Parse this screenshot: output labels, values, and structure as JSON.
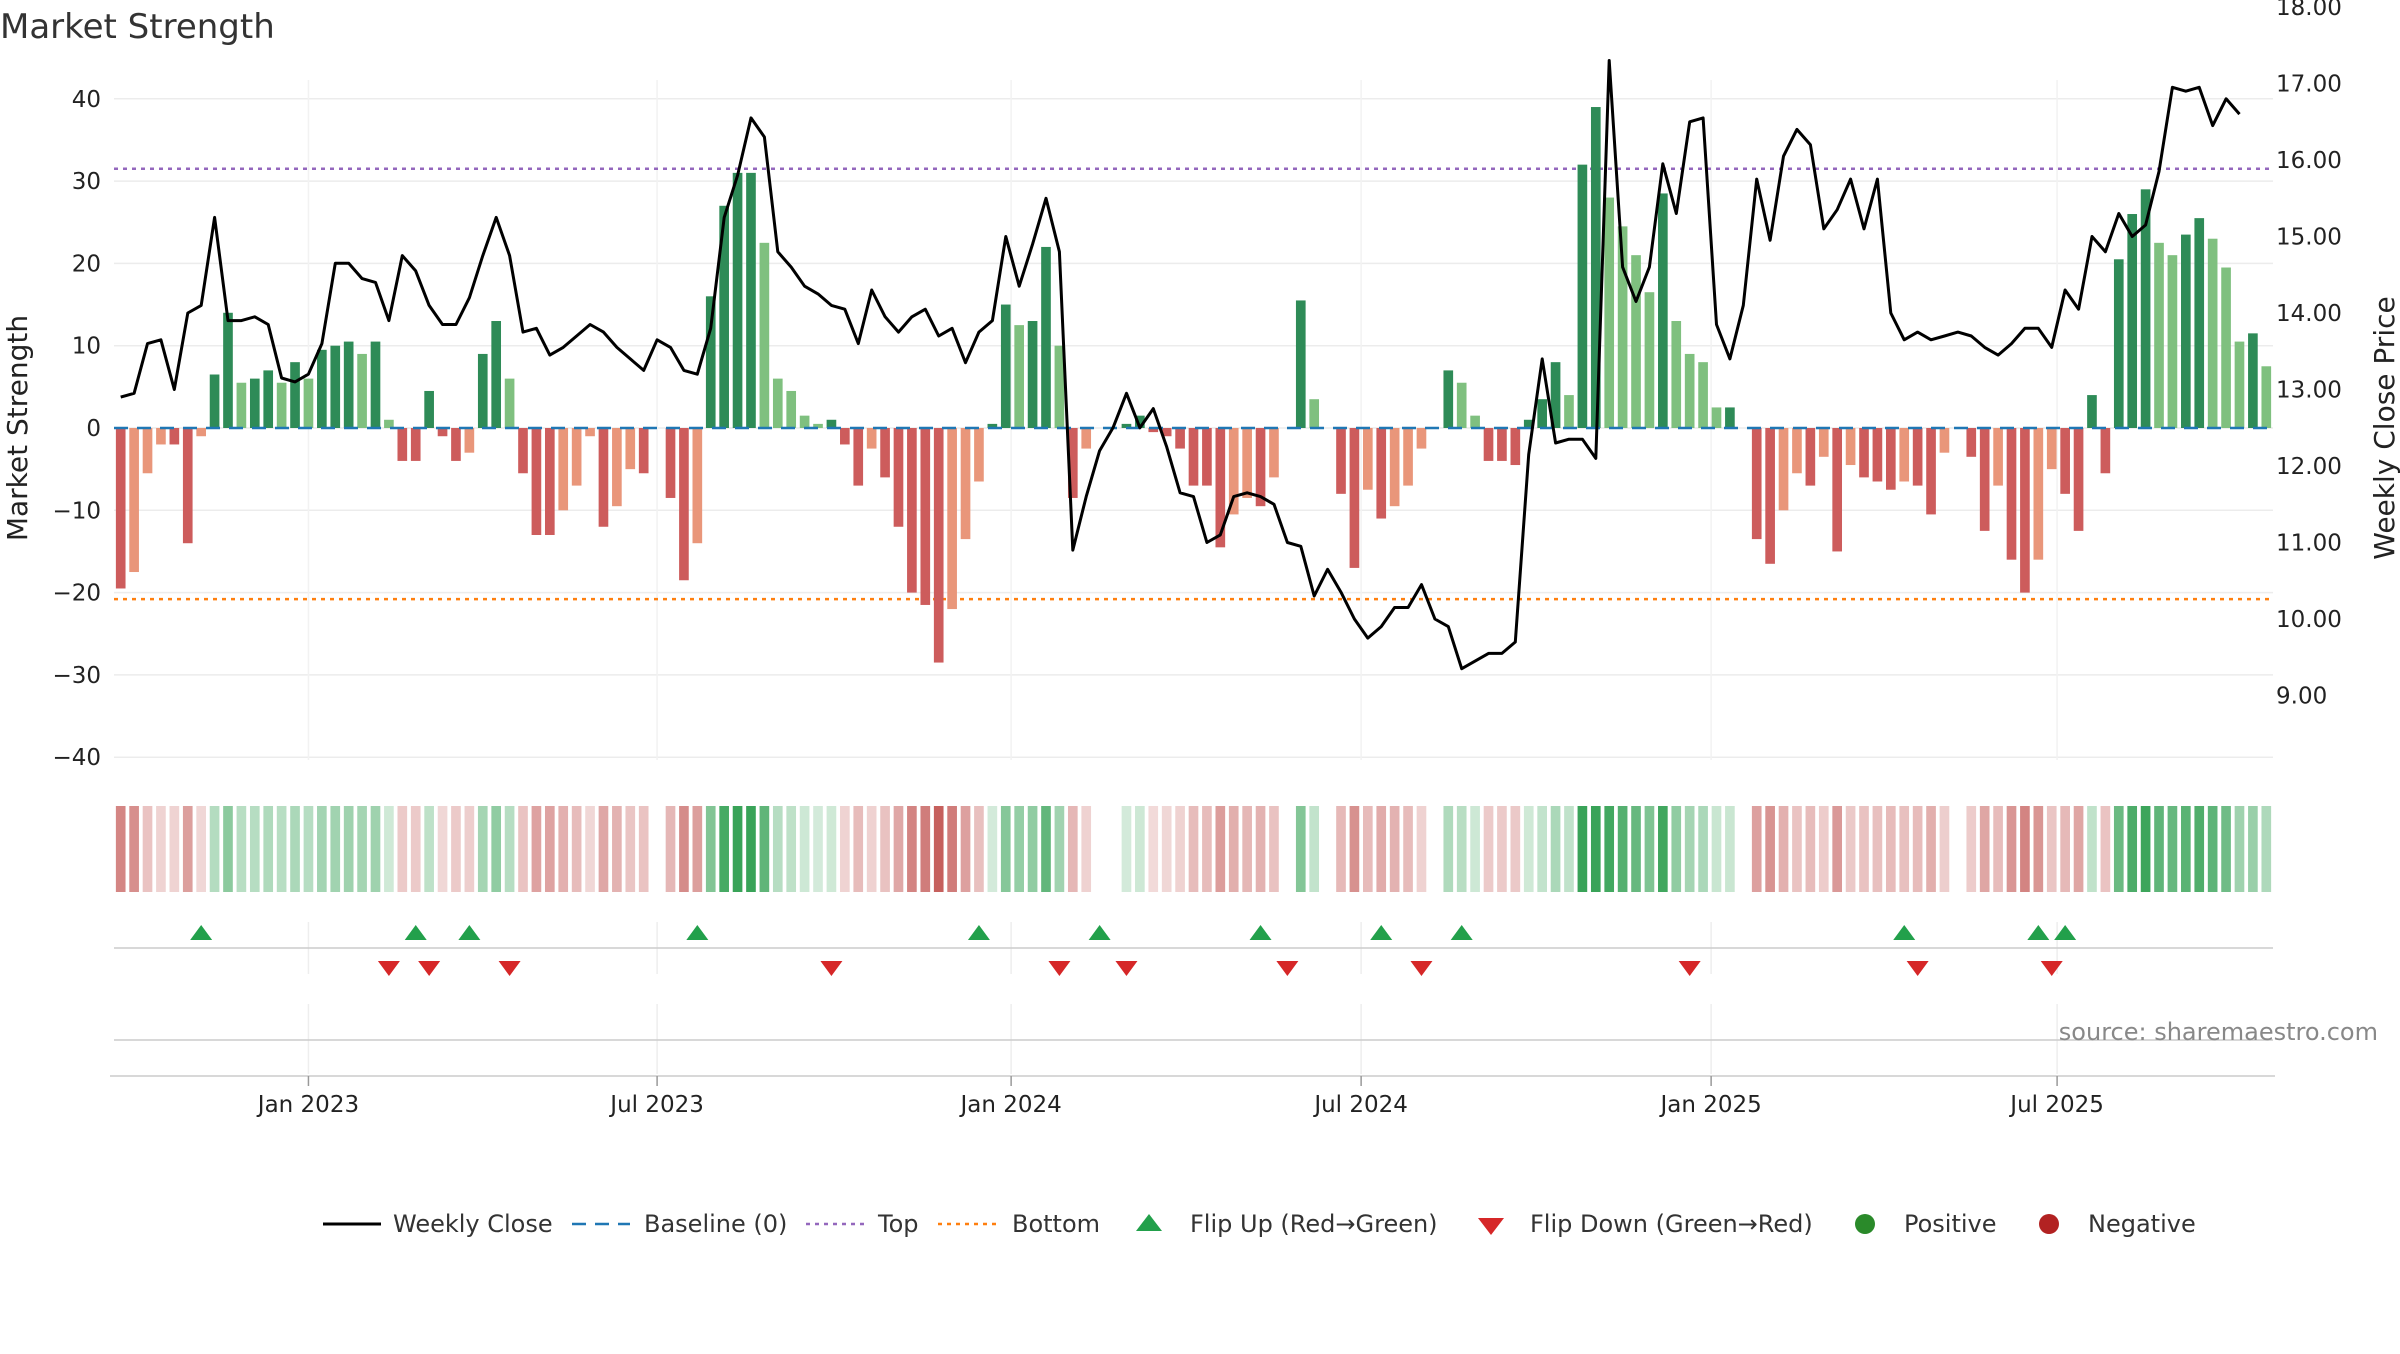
{
  "title": "Market Strength",
  "source": "source: sharemaestro.com",
  "colors": {
    "strong_pos": "#2e8b57",
    "weak_pos": "#7fc07f",
    "strong_neg": "#cd5c5c",
    "weak_neg": "#e9967a",
    "close_line": "#000000",
    "baseline": "#1f77b4",
    "top": "#9467bd",
    "bottom": "#ff7f0e",
    "flip_up": "#22a04b",
    "flip_down": "#d62728",
    "positive": "#2a8a2a",
    "negative": "#b22222"
  },
  "chart_data": {
    "type": "bar",
    "y_left": {
      "label": "Market Strength",
      "ylim": [
        -45,
        42
      ],
      "ticks": [
        40,
        30,
        20,
        10,
        0,
        -10,
        -20,
        -30,
        -40
      ],
      "tick_labels": [
        "40",
        "30",
        "20",
        "10",
        "0",
        "−10",
        "−20",
        "−30",
        "−40"
      ]
    },
    "y_right": {
      "label": "Weekly Close Price",
      "ylim": [
        8.8,
        18.2
      ],
      "ticks": [
        18,
        17,
        16,
        15,
        14,
        13,
        12,
        11,
        10,
        9
      ],
      "tick_labels": [
        "18.00",
        "17.00",
        "16.00",
        "15.00",
        "14.00",
        "13.00",
        "12.00",
        "11.00",
        "10.00",
        "9.00"
      ]
    },
    "x_axis": {
      "tick_labels": [
        "Jan 2023",
        "Jul 2023",
        "Jan 2024",
        "Jul 2024",
        "Jan 2025",
        "Jul 2025"
      ],
      "tick_weeks": [
        14,
        40,
        66.4,
        92.5,
        118.6,
        144.4
      ]
    },
    "levels": {
      "top": 31.5,
      "bottom": -20.8,
      "baseline": 0
    },
    "strength": [
      -19.5,
      -17.5,
      -5.5,
      -2,
      -2,
      -14,
      -1,
      6.5,
      14,
      5.5,
      6,
      7,
      5.5,
      8,
      6,
      9.5,
      10,
      10.5,
      9,
      10.5,
      1,
      -4,
      -4,
      4.5,
      -1,
      -4,
      -3,
      9,
      13,
      6,
      -5.5,
      -13,
      -13,
      -10,
      -7,
      -1,
      -12,
      -9.5,
      -5,
      -5.5,
      0,
      -8.5,
      -18.5,
      -14,
      16,
      27,
      31,
      31,
      22.5,
      6,
      4.5,
      1.5,
      0.5,
      1,
      -2,
      -7,
      -2.5,
      -6,
      -12,
      -20,
      -21.5,
      -28.5,
      -22,
      -13.5,
      -6.5,
      0.5,
      15,
      12.5,
      13,
      22,
      10,
      -8.5,
      -2.5,
      0,
      0,
      0.5,
      1.5,
      -0.5,
      -1,
      -2.5,
      -7,
      -7,
      -14.5,
      -10.5,
      -8.5,
      -9.5,
      -6,
      0,
      15.5,
      3.5,
      0,
      -8,
      -17,
      -7.5,
      -11,
      -9.5,
      -7,
      -2.5,
      0,
      7,
      5.5,
      1.5,
      -4,
      -4,
      -4.5,
      1,
      3.5,
      8,
      4,
      32,
      39,
      28,
      24.5,
      21,
      16.5,
      28.5,
      13,
      9,
      8,
      2.5,
      2.5,
      0,
      -13.5,
      -16.5,
      -10,
      -5.5,
      -7,
      -3.5,
      -15,
      -4.5,
      -6,
      -6.5,
      -7.5,
      -6.5,
      -7,
      -10.5,
      -3,
      0,
      -3.5,
      -12.5,
      -7,
      -16,
      -20,
      -16,
      -5,
      -8,
      -12.5,
      4,
      -5.5,
      20.5,
      26,
      29,
      22.5,
      21,
      23.5,
      25.5,
      23,
      19.5,
      10.5,
      11.5,
      7.5
    ],
    "weekly_close": [
      12.9,
      12.95,
      13.6,
      13.65,
      13.0,
      14.0,
      14.1,
      15.25,
      13.9,
      13.9,
      13.95,
      13.85,
      13.15,
      13.1,
      13.2,
      13.6,
      14.65,
      14.65,
      14.45,
      14.4,
      13.9,
      14.75,
      14.55,
      14.1,
      13.85,
      13.85,
      14.2,
      14.75,
      15.25,
      14.75,
      13.75,
      13.8,
      13.45,
      13.55,
      13.7,
      13.85,
      13.75,
      13.55,
      13.4,
      13.25,
      13.65,
      13.55,
      13.25,
      13.2,
      13.8,
      15.25,
      15.8,
      16.55,
      16.3,
      14.8,
      14.6,
      14.35,
      14.25,
      14.1,
      14.05,
      13.6,
      14.3,
      13.95,
      13.75,
      13.95,
      14.05,
      13.7,
      13.8,
      13.35,
      13.75,
      13.9,
      15.0,
      14.35,
      14.9,
      15.5,
      14.8,
      10.9,
      11.6,
      12.2,
      12.5,
      12.95,
      12.5,
      12.75,
      12.25,
      11.65,
      11.6,
      11.0,
      11.1,
      11.6,
      11.65,
      11.6,
      11.5,
      11.0,
      10.95,
      10.3,
      10.65,
      10.35,
      10.0,
      9.75,
      9.9,
      10.15,
      10.15,
      10.45,
      10.0,
      9.9,
      9.35,
      9.45,
      9.55,
      9.55,
      9.7,
      12.15,
      13.4,
      12.3,
      12.35,
      12.35,
      12.1,
      17.3,
      14.6,
      14.15,
      14.6,
      15.95,
      15.3,
      16.5,
      16.55,
      13.85,
      13.4,
      14.1,
      15.75,
      14.95,
      16.05,
      16.4,
      16.2,
      15.1,
      15.35,
      15.75,
      15.1,
      15.75,
      14.0,
      13.65,
      13.75,
      13.65,
      13.7,
      13.75,
      13.7,
      13.55,
      13.45,
      13.6,
      13.8,
      13.8,
      13.55,
      14.3,
      14.05,
      15.0,
      14.8,
      15.3,
      15.0,
      15.15,
      15.85,
      16.95,
      16.9,
      16.95,
      16.45,
      16.8,
      16.6
    ],
    "flip_up_weeks": [
      6,
      22,
      26,
      43,
      64,
      73,
      85,
      94,
      100,
      133,
      143,
      145
    ],
    "flip_down_weeks": [
      20,
      23,
      29,
      53,
      70,
      75,
      87,
      97,
      117,
      134,
      144
    ],
    "legend": [
      {
        "label": "Weekly Close",
        "kind": "line"
      },
      {
        "label": "Baseline (0)",
        "kind": "dash"
      },
      {
        "label": "Top",
        "kind": "dot-top"
      },
      {
        "label": "Bottom",
        "kind": "dot-bottom"
      },
      {
        "label": "Flip Up (Red→Green)",
        "kind": "tri-up"
      },
      {
        "label": "Flip Down (Green→Red)",
        "kind": "tri-down"
      },
      {
        "label": "Positive",
        "kind": "circle-pos"
      },
      {
        "label": "Negative",
        "kind": "circle-neg"
      }
    ]
  }
}
